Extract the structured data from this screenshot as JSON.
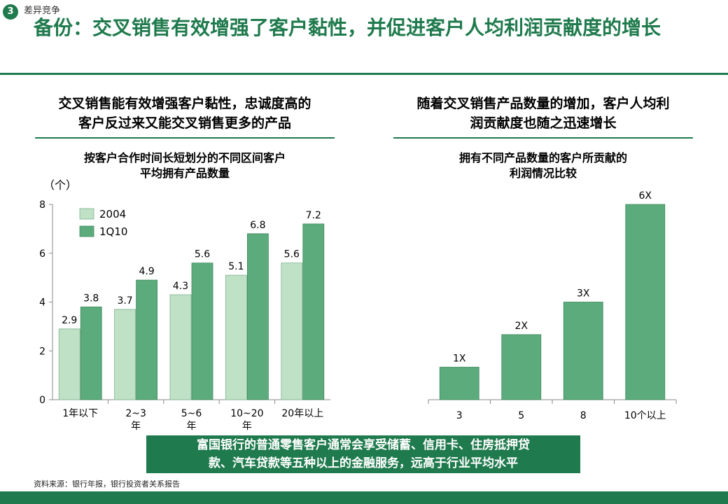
{
  "header": {
    "badge": "3",
    "section": "差异竞争",
    "title": "备份：交叉销售有效增强了客户黏性，并促进客户人均利润贡献度的增长"
  },
  "left_panel": {
    "heading_line1": "交叉销售能有效增强客户黏性，忠诚度高的",
    "heading_line2": "客户反过来又能交叉销售更多的产品",
    "chart_title_line1": "按客户合作时间长短划分的不同区间客户",
    "chart_title_line2": "平均拥有产品数量",
    "unit": "（个）"
  },
  "right_panel": {
    "heading_line1": "随着交叉销售产品数量的增加，客户人均利",
    "heading_line2": "润贡献度也随之迅速增长",
    "chart_title_line1": "拥有不同产品数量的客户所贡献的",
    "chart_title_line2": "利润情况比较"
  },
  "callout": {
    "line1": "富国银行的普通零售客户通常会享受储蓄、信用卡、住房抵押贷",
    "line2": "款、汽车贷款等五种以上的金融服务，远高于行业平均水平"
  },
  "source": "资料来源：银行年报，银行投资者关系报告",
  "colors": {
    "primary": "#1f7a4d",
    "series_light": "#bfe1c6",
    "series_dark": "#5bab7c"
  },
  "chart_data": [
    {
      "type": "bar",
      "categories": [
        [
          "1年以下"
        ],
        [
          "2~3",
          "年"
        ],
        [
          "5~6",
          "年"
        ],
        [
          "10~20",
          "年"
        ],
        [
          "20年以上"
        ]
      ],
      "series": [
        {
          "name": "2004",
          "values": [
            2.9,
            3.7,
            4.3,
            5.1,
            5.6
          ]
        },
        {
          "name": "1Q10",
          "values": [
            3.8,
            4.9,
            5.6,
            6.8,
            7.2
          ]
        }
      ],
      "yticks": [
        0,
        2,
        4,
        6,
        8
      ],
      "ylim": [
        0,
        8
      ],
      "legend": "top-left"
    },
    {
      "type": "bar",
      "categories": [
        "3",
        "5",
        "8",
        "10个以上"
      ],
      "values": [
        1,
        2,
        3,
        6
      ],
      "value_labels": [
        "1X",
        "2X",
        "3X",
        "6X"
      ],
      "ylim": [
        0,
        6
      ]
    }
  ]
}
